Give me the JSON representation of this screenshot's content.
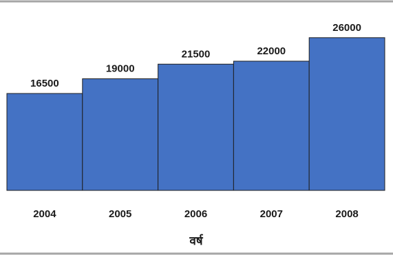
{
  "chart_data": {
    "type": "bar",
    "categories": [
      "2004",
      "2005",
      "2006",
      "2007",
      "2008"
    ],
    "values": [
      16500,
      19000,
      21500,
      22000,
      26000
    ],
    "data_labels": [
      "16500",
      "19000",
      "21500",
      "22000",
      "26000"
    ],
    "title": "",
    "xlabel": "वर्ष",
    "ylabel": "",
    "ylim": [
      0,
      29000
    ],
    "grid": false,
    "legend": "none",
    "bar_color": "#4472c4",
    "bar_edge_color": "#1f1f1f"
  }
}
